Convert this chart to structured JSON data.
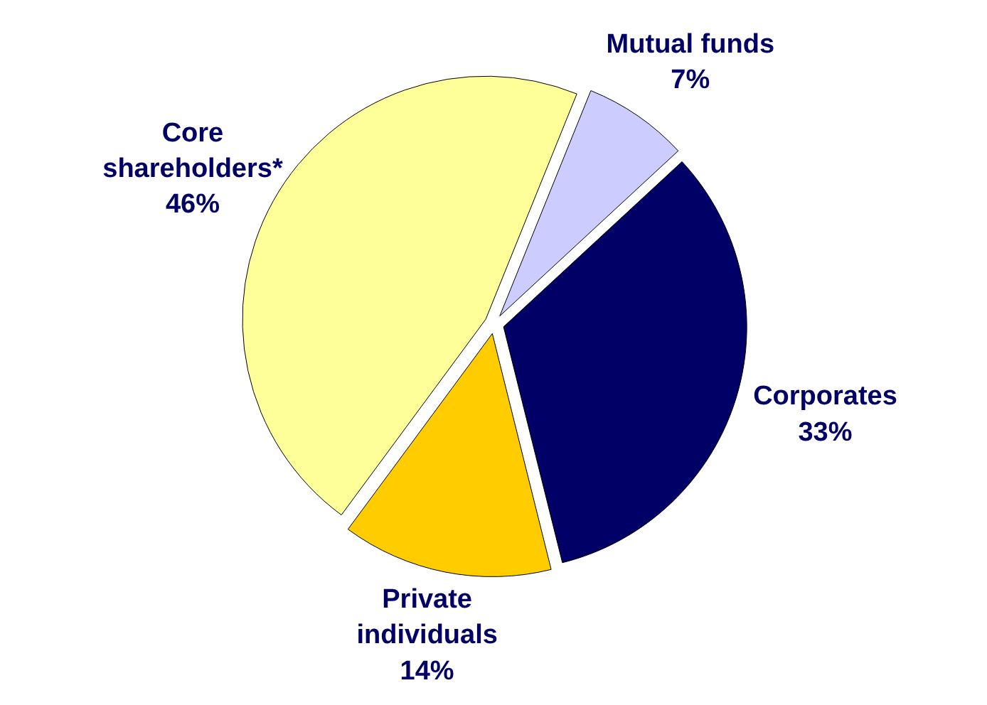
{
  "chart_data": {
    "type": "pie",
    "categories": [
      "Mutual funds",
      "Corporates",
      "Private\nindividuals",
      "Core\nshareholders*"
    ],
    "values": [
      7,
      33,
      14,
      46
    ],
    "colors": [
      "#ccccff",
      "#000066",
      "#ffcc00",
      "#ffff99"
    ],
    "value_labels": [
      "7%",
      "33%",
      "14%",
      "46%"
    ]
  }
}
